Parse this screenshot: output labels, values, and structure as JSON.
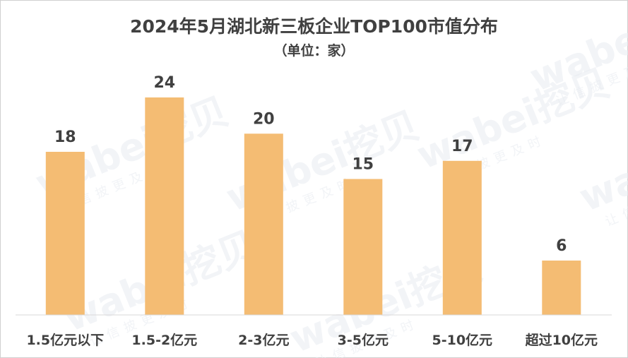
{
  "chart_data": {
    "type": "bar",
    "title": "2024年5月湖北新三板企业TOP100市值分布",
    "subtitle": "（单位：家）",
    "categories": [
      "1.5亿元以下",
      "1.5-2亿元",
      "2-3亿元",
      "3-5亿元",
      "5-10亿元",
      "超过10亿元"
    ],
    "values": [
      18,
      24,
      20,
      15,
      17,
      6
    ],
    "ylim": [
      0,
      24
    ],
    "grid": false,
    "legend": "none",
    "bar_color": "#F4BC73",
    "text_color": "#404040"
  },
  "watermark": {
    "brand": "wabei挖贝",
    "slogan": "让信披更及时"
  }
}
